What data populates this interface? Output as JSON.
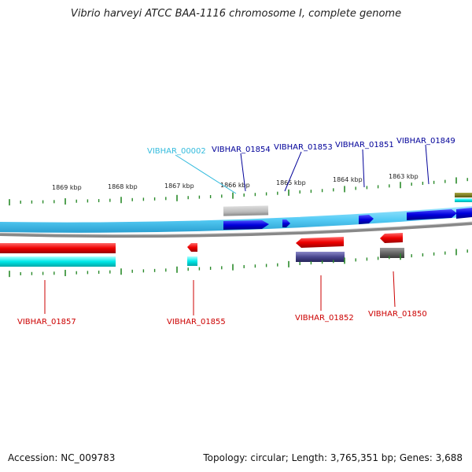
{
  "title": "Vibrio harveyi ATCC BAA-1116 chromosome I, complete genome",
  "footer": {
    "accession": "Accession: NC_009783",
    "summary": "Topology: circular; Length: 3,765,351 bp; Genes: 3,688"
  },
  "colors": {
    "forward_strand": "#66ccff",
    "forward_gene": "#0000ee",
    "reverse_gene": "#ee0000",
    "reverse_cds": "#00e5e5",
    "backbone": "#888888",
    "tick": "#2a8a2a",
    "label_top": "#000099",
    "label_top_alt": "#33bbdd",
    "label_bottom": "#cc0000"
  },
  "scale_labels": [
    "1869 kbp",
    "1868 kbp",
    "1867 kbp",
    "1866 kbp",
    "1865 kbp",
    "1864 kbp",
    "1863 kbp"
  ],
  "top_labels": [
    "VIBHAR_00002",
    "VIBHAR_01854",
    "VIBHAR_01853",
    "VIBHAR_01851",
    "VIBHAR_01849"
  ],
  "bottom_labels": [
    "VIBHAR_01857",
    "VIBHAR_01855",
    "VIBHAR_01852",
    "VIBHAR_01850"
  ]
}
